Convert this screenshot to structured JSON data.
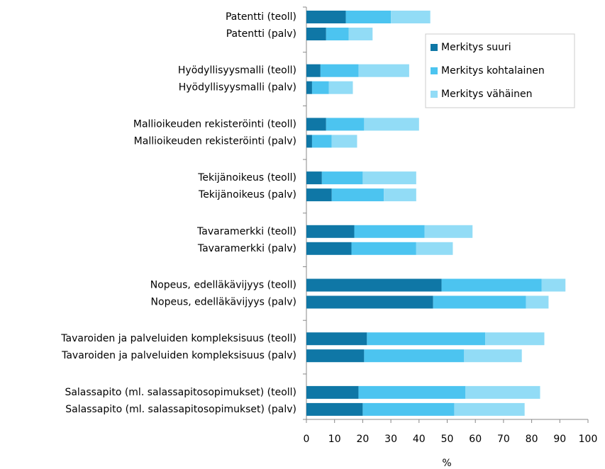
{
  "chart_data": {
    "type": "bar",
    "orientation": "horizontal",
    "stacked": true,
    "categories": [
      "Patentti (teoll)",
      "Patentti (palv)",
      "Hyödyllisyysmalli (teoll)",
      "Hyödyllisyysmalli (palv)",
      "Mallioikeuden rekisteröinti (teoll)",
      "Mallioikeuden rekisteröinti (palv)",
      "Tekijänoikeus (teoll)",
      "Tekijänoikeus (palv)",
      "Tavaramerkki (teoll)",
      "Tavaramerkki (palv)",
      "Nopeus, edelläkävijyys (teoll)",
      "Nopeus, edelläkävijyys (palv)",
      "Tavaroiden ja palveluiden kompleksisuus (teoll)",
      "Tavaroiden ja palveluiden kompleksisuus (palv)",
      "Salassapito (ml. salassapitosopimukset) (teoll)",
      "Salassapito (ml. salassapitosopimukset) (palv)"
    ],
    "series": [
      {
        "name": "Merkitys suuri",
        "color": "#0f77a6",
        "values": [
          14,
          7,
          5,
          2,
          7,
          2,
          5.5,
          9,
          17,
          16,
          48,
          45,
          21.5,
          20.5,
          18.5,
          20
        ]
      },
      {
        "name": "Merkitys kohtalainen",
        "color": "#4cc4f0",
        "values": [
          16,
          8,
          13.5,
          6,
          13.5,
          7,
          14.5,
          18.5,
          25,
          23,
          35.5,
          33,
          42,
          35.5,
          38,
          32.5
        ]
      },
      {
        "name": "Merkitys vähäinen",
        "color": "#92dcf6",
        "values": [
          14,
          8.5,
          18,
          8.5,
          19.5,
          9,
          19,
          11.5,
          17,
          13,
          8.5,
          8,
          21,
          20.5,
          26.5,
          25
        ]
      }
    ],
    "xlabel": "%",
    "xlim": [
      0,
      100
    ],
    "xticks": [
      0,
      10,
      20,
      30,
      40,
      50,
      60,
      70,
      80,
      90,
      100
    ],
    "legend": "upper right",
    "grid": false
  }
}
